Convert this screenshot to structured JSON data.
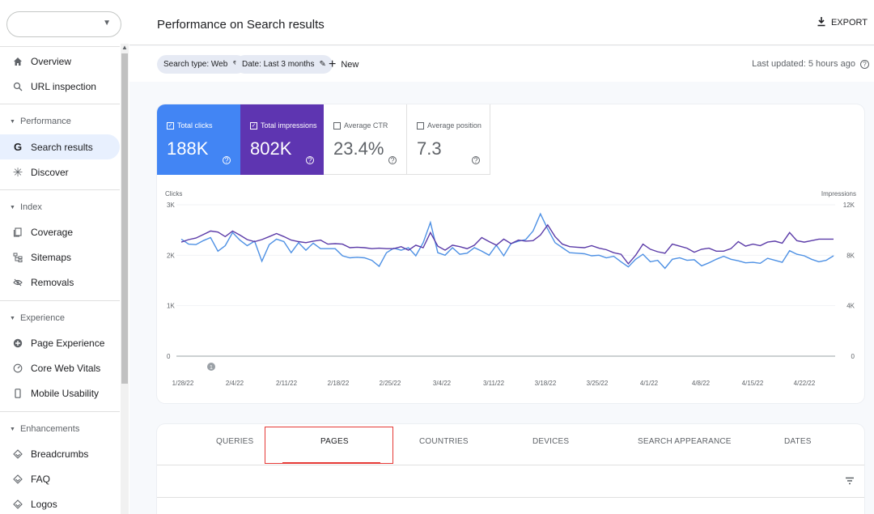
{
  "sidebar": {
    "property_select": {
      "value": ""
    },
    "top_items": [
      {
        "label": "Overview",
        "icon": "home-icon"
      },
      {
        "label": "URL inspection",
        "icon": "search-icon"
      }
    ],
    "sections": [
      {
        "title": "Performance",
        "items": [
          {
            "label": "Search results",
            "icon": "google-g-icon",
            "active": true
          },
          {
            "label": "Discover",
            "icon": "asterisk-icon"
          }
        ]
      },
      {
        "title": "Index",
        "items": [
          {
            "label": "Coverage",
            "icon": "file-copy-icon"
          },
          {
            "label": "Sitemaps",
            "icon": "sitemap-icon"
          },
          {
            "label": "Removals",
            "icon": "eye-off-icon"
          }
        ]
      },
      {
        "title": "Experience",
        "items": [
          {
            "label": "Page Experience",
            "icon": "plus-circle-icon"
          },
          {
            "label": "Core Web Vitals",
            "icon": "gauge-icon"
          },
          {
            "label": "Mobile Usability",
            "icon": "phone-icon"
          }
        ]
      },
      {
        "title": "Enhancements",
        "items": [
          {
            "label": "Breadcrumbs",
            "icon": "diamond-icon"
          },
          {
            "label": "FAQ",
            "icon": "diamond-icon"
          },
          {
            "label": "Logos",
            "icon": "diamond-icon"
          }
        ]
      }
    ]
  },
  "header": {
    "title": "Performance on Search results",
    "export_label": "EXPORT"
  },
  "filters": {
    "search_type": "Search type: Web",
    "date": "Date: Last 3 months",
    "new_label": "New",
    "last_updated": "Last updated: 5 hours ago"
  },
  "metrics": {
    "clicks": {
      "label": "Total clicks",
      "value": "188K",
      "checked": true,
      "color": "#4285f4"
    },
    "impressions": {
      "label": "Total impressions",
      "value": "802K",
      "checked": true,
      "color": "#5e35b1"
    },
    "ctr": {
      "label": "Average CTR",
      "value": "23.4%",
      "checked": false
    },
    "position": {
      "label": "Average position",
      "value": "7.3",
      "checked": false
    }
  },
  "chart_data": {
    "type": "line",
    "left_axis_label": "Clicks",
    "right_axis_label": "Impressions",
    "left_ticks": [
      "0",
      "1K",
      "2K",
      "3K"
    ],
    "right_ticks": [
      "0",
      "4K",
      "8K",
      "12K"
    ],
    "left_range": [
      0,
      3000
    ],
    "right_range": [
      0,
      12000
    ],
    "x_tick_labels": [
      "1/28/22",
      "2/4/22",
      "2/11/22",
      "2/18/22",
      "2/25/22",
      "3/4/22",
      "3/11/22",
      "3/18/22",
      "3/25/22",
      "4/1/22",
      "4/8/22",
      "4/15/22",
      "4/22/22"
    ],
    "annotation": "1",
    "series": [
      {
        "name": "Clicks",
        "axis": "left",
        "color": "#4d90e4",
        "values": [
          2320,
          2220,
          2210,
          2290,
          2350,
          2080,
          2190,
          2450,
          2300,
          2190,
          2280,
          1880,
          2210,
          2320,
          2270,
          2050,
          2250,
          2100,
          2240,
          2130,
          2130,
          2130,
          1990,
          1950,
          1960,
          1950,
          1900,
          1780,
          2050,
          2140,
          2100,
          2150,
          1990,
          2250,
          2650,
          2050,
          2000,
          2150,
          2020,
          2040,
          2150,
          2080,
          2000,
          2200,
          1990,
          2230,
          2280,
          2310,
          2480,
          2820,
          2520,
          2250,
          2150,
          2050,
          2040,
          2030,
          1990,
          2000,
          1950,
          1980,
          1870,
          1770,
          1920,
          2020,
          1870,
          1900,
          1740,
          1920,
          1950,
          1900,
          1910,
          1790,
          1850,
          1920,
          1980,
          1920,
          1890,
          1850,
          1860,
          1840,
          1940,
          1900,
          1860,
          2090,
          2020,
          1990,
          1920,
          1870,
          1900,
          1990
        ]
      },
      {
        "name": "Impressions",
        "axis": "left",
        "color": "#5b3ba8",
        "values": [
          2260,
          2310,
          2340,
          2410,
          2480,
          2460,
          2370,
          2480,
          2400,
          2310,
          2270,
          2310,
          2370,
          2430,
          2370,
          2300,
          2270,
          2250,
          2280,
          2300,
          2220,
          2230,
          2220,
          2150,
          2160,
          2150,
          2130,
          2140,
          2130,
          2130,
          2170,
          2100,
          2200,
          2150,
          2450,
          2180,
          2100,
          2200,
          2170,
          2130,
          2200,
          2350,
          2270,
          2200,
          2320,
          2230,
          2300,
          2280,
          2290,
          2400,
          2600,
          2370,
          2220,
          2170,
          2160,
          2150,
          2190,
          2140,
          2110,
          2050,
          2020,
          1830,
          2000,
          2220,
          2120,
          2070,
          2040,
          2220,
          2180,
          2140,
          2060,
          2120,
          2140,
          2080,
          2080,
          2130,
          2270,
          2180,
          2220,
          2190,
          2260,
          2280,
          2240,
          2450,
          2290,
          2260,
          2290,
          2320,
          2320,
          2320
        ]
      }
    ]
  },
  "tabs": {
    "items": [
      "QUERIES",
      "PAGES",
      "COUNTRIES",
      "DEVICES",
      "SEARCH APPEARANCE",
      "DATES"
    ],
    "active": "PAGES"
  }
}
